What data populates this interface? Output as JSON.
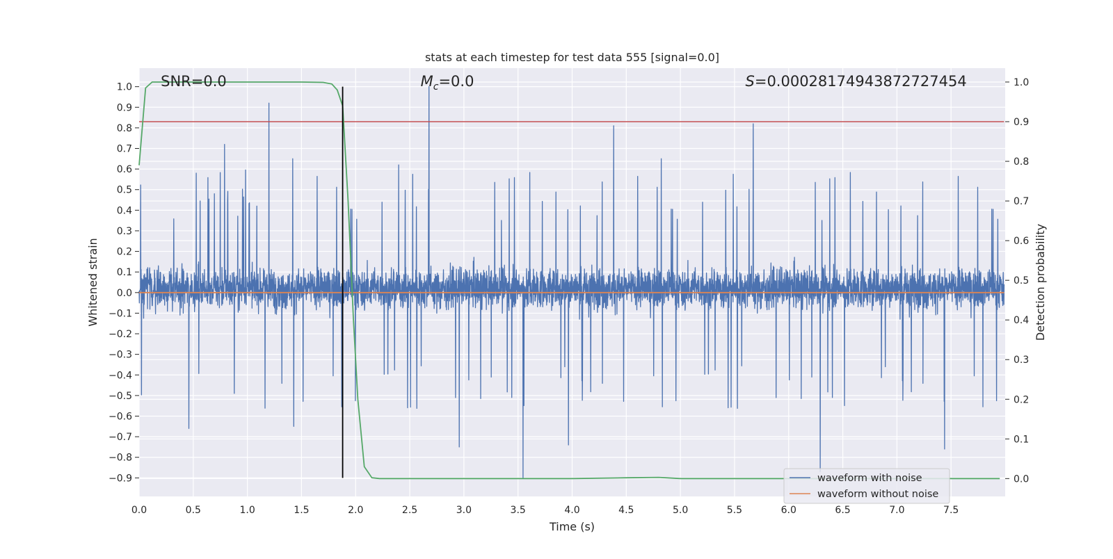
{
  "chart_data": {
    "type": "line",
    "title": "stats at each timestep for test data 555 [signal=0.0]",
    "xlabel": "Time (s)",
    "ylabel_left": "Whitened strain",
    "ylabel_right": "Detection probability",
    "xlim": [
      0.0,
      8.0
    ],
    "ylim_left": [
      -0.99,
      1.09
    ],
    "ylim_right": [
      -0.045,
      1.035
    ],
    "x_ticks": [
      "0.0",
      "0.5",
      "1.0",
      "1.5",
      "2.0",
      "2.5",
      "3.0",
      "3.5",
      "4.0",
      "4.5",
      "5.0",
      "5.5",
      "6.0",
      "6.5",
      "7.0",
      "7.5"
    ],
    "y_ticks_left": [
      "1.0",
      "0.9",
      "0.8",
      "0.7",
      "0.6",
      "0.5",
      "0.4",
      "0.3",
      "0.2",
      "0.1",
      "0.0",
      "-0.1",
      "-0.2",
      "-0.3",
      "-0.4",
      "-0.5",
      "-0.6",
      "-0.7",
      "-0.8",
      "-0.9"
    ],
    "y_ticks_right": [
      "1.0",
      "0.9",
      "0.8",
      "0.7",
      "0.6",
      "0.5",
      "0.4",
      "0.3",
      "0.2",
      "0.1",
      "0.0"
    ],
    "grid": true,
    "legend_placement": "lower-right",
    "annotations": {
      "snr": "SNR=0.0",
      "mc_symbol": "M",
      "mc_subscript": "c",
      "mc_value": "=0.0",
      "s_symbol": "S",
      "s_value": "=0.00028174943872727454"
    },
    "series": [
      {
        "name": "waveform with noise",
        "axis": "left",
        "color": "#4c72b0",
        "style": "dense noise",
        "typical_range": [
          -0.4,
          0.45
        ],
        "notable_peaks": [
          {
            "x": 0.79,
            "y": 0.72
          },
          {
            "x": 1.2,
            "y": 0.92
          },
          {
            "x": 1.42,
            "y": 0.65
          },
          {
            "x": 2.68,
            "y": 1.0
          },
          {
            "x": 2.4,
            "y": 0.62
          },
          {
            "x": 4.39,
            "y": 0.81
          },
          {
            "x": 5.68,
            "y": 0.82
          },
          {
            "x": 4.83,
            "y": 0.65
          },
          {
            "x": 1.43,
            "y": -0.65
          },
          {
            "x": 0.46,
            "y": -0.66
          },
          {
            "x": 2.96,
            "y": -0.75
          },
          {
            "x": 3.55,
            "y": -0.9
          },
          {
            "x": 3.97,
            "y": -0.74
          },
          {
            "x": 6.3,
            "y": -0.87
          },
          {
            "x": 7.45,
            "y": -0.76
          }
        ]
      },
      {
        "name": "waveform without noise",
        "axis": "left",
        "color": "#dd8452",
        "x": [
          0.0,
          7.99
        ],
        "y": [
          0.0,
          0.0
        ]
      },
      {
        "name": "",
        "axis": "right",
        "color": "#55a868",
        "x": [
          0.0,
          0.06,
          0.12,
          0.2,
          0.5,
          1.0,
          1.5,
          1.7,
          1.78,
          1.83,
          1.88,
          1.93,
          1.98,
          2.02,
          2.08,
          2.15,
          2.22,
          2.5,
          3.0,
          3.5,
          4.0,
          4.5,
          4.8,
          5.0,
          5.5,
          6.0,
          6.5,
          7.0,
          7.5,
          7.95
        ],
        "y": [
          0.79,
          0.985,
          1.0,
          1.0,
          1.0,
          1.0,
          1.0,
          0.999,
          0.995,
          0.98,
          0.94,
          0.7,
          0.4,
          0.2,
          0.03,
          0.002,
          0.0,
          0.0,
          0.0,
          0.0,
          0.0,
          0.002,
          0.003,
          0.0,
          0.0,
          0.0,
          0.0,
          0.0,
          0.0,
          0.0
        ]
      },
      {
        "name": "",
        "axis": "right",
        "color": "#c44e52",
        "x": [
          0.0,
          7.99
        ],
        "y": [
          0.9,
          0.9
        ]
      }
    ],
    "vertical_marker": {
      "x": 1.88,
      "y_range": [
        -0.9,
        1.0
      ],
      "color": "#000000"
    }
  }
}
